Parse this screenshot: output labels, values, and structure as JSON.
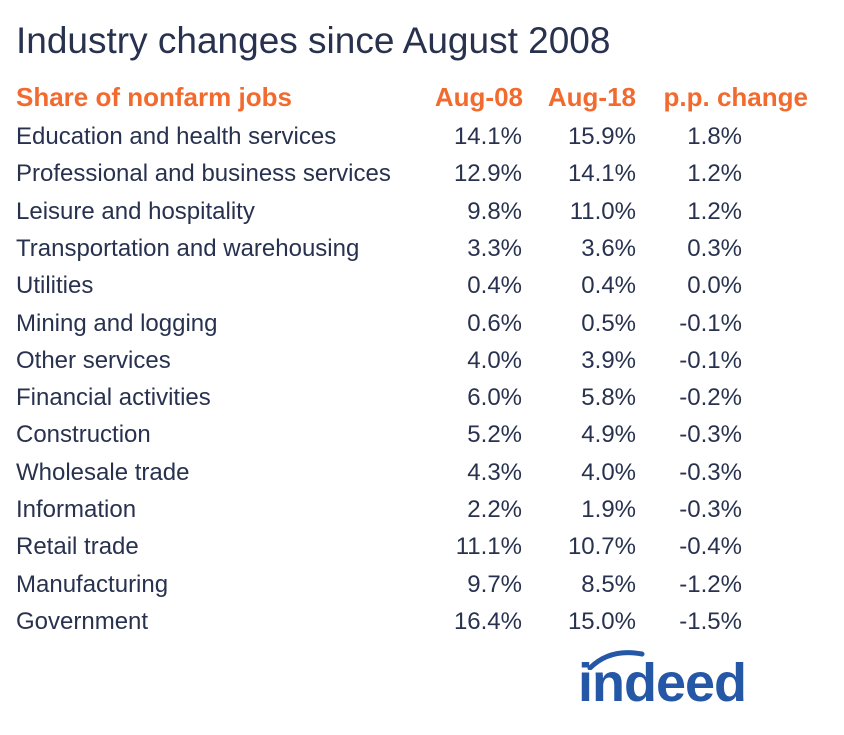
{
  "chart_data": {
    "type": "table",
    "title": "Industry changes since August 2008",
    "columns": [
      "Share of nonfarm jobs",
      "Aug-08",
      "Aug-18",
      "p.p. change"
    ],
    "rows": [
      {
        "industry": "Education and health services",
        "aug08": "14.1%",
        "aug18": "15.9%",
        "change": "1.8%"
      },
      {
        "industry": "Professional and business services",
        "aug08": "12.9%",
        "aug18": "14.1%",
        "change": "1.2%"
      },
      {
        "industry": "Leisure and hospitality",
        "aug08": "9.8%",
        "aug18": "11.0%",
        "change": "1.2%"
      },
      {
        "industry": "Transportation and warehousing",
        "aug08": "3.3%",
        "aug18": "3.6%",
        "change": "0.3%"
      },
      {
        "industry": "Utilities",
        "aug08": "0.4%",
        "aug18": "0.4%",
        "change": "0.0%"
      },
      {
        "industry": "Mining and logging",
        "aug08": "0.6%",
        "aug18": "0.5%",
        "change": "-0.1%"
      },
      {
        "industry": "Other services",
        "aug08": "4.0%",
        "aug18": "3.9%",
        "change": "-0.1%"
      },
      {
        "industry": "Financial activities",
        "aug08": "6.0%",
        "aug18": "5.8%",
        "change": "-0.2%"
      },
      {
        "industry": "Construction",
        "aug08": "5.2%",
        "aug18": "4.9%",
        "change": "-0.3%"
      },
      {
        "industry": "Wholesale trade",
        "aug08": "4.3%",
        "aug18": "4.0%",
        "change": "-0.3%"
      },
      {
        "industry": "Information",
        "aug08": "2.2%",
        "aug18": "1.9%",
        "change": "-0.3%"
      },
      {
        "industry": "Retail trade",
        "aug08": "11.1%",
        "aug18": "10.7%",
        "change": "-0.4%"
      },
      {
        "industry": "Manufacturing",
        "aug08": "9.7%",
        "aug18": "8.5%",
        "change": "-1.2%"
      },
      {
        "industry": "Government",
        "aug08": "16.4%",
        "aug18": "15.0%",
        "change": "-1.5%"
      }
    ]
  },
  "logo": {
    "text": "indeed"
  },
  "colors": {
    "text": "#28324f",
    "header": "#f26a2e",
    "brand": "#2557a7"
  }
}
